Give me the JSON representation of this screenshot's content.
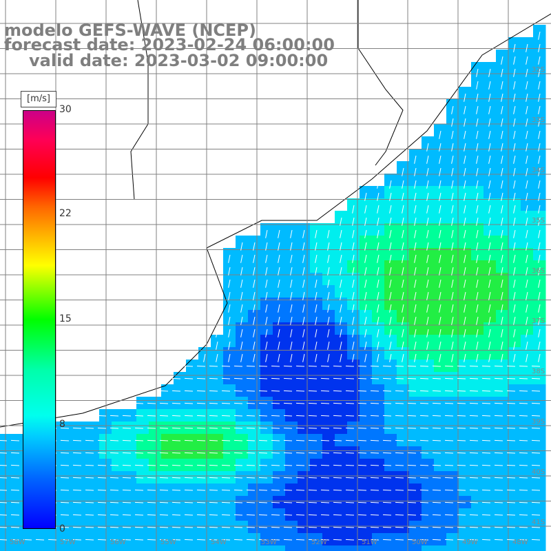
{
  "title": {
    "line1": "modelo GEFS-WAVE (NCEP)",
    "line2": "forecast date: 2023-02-24 06:00:00",
    "line3": "valid date: 2023-03-02 09:00:00"
  },
  "colorbar": {
    "units": "[m/s]",
    "ticks": [
      {
        "label": "30",
        "value": 30
      },
      {
        "label": "22",
        "value": 22
      },
      {
        "label": "15",
        "value": 15
      },
      {
        "label": "8",
        "value": 8
      },
      {
        "label": "0",
        "value": 0
      }
    ],
    "colors": [
      "#0000ff",
      "#0066ff",
      "#00ccff",
      "#00ffee",
      "#00ff00",
      "#ffff00",
      "#ff6600",
      "#ff0000",
      "#cc0088"
    ]
  },
  "lat_labels": [
    "32S",
    "33S",
    "34S",
    "35S",
    "36S",
    "37S",
    "38S",
    "39S",
    "40S",
    "41S"
  ],
  "lon_labels": [
    "58W",
    "57W",
    "56W",
    "55W",
    "54W",
    "53W",
    "52W",
    "51W",
    "50W",
    "49W",
    "48W"
  ],
  "colors": {
    "land": "#ffffff",
    "coast": "#000000",
    "grid": "#808080",
    "vector": "#ffffff"
  }
}
